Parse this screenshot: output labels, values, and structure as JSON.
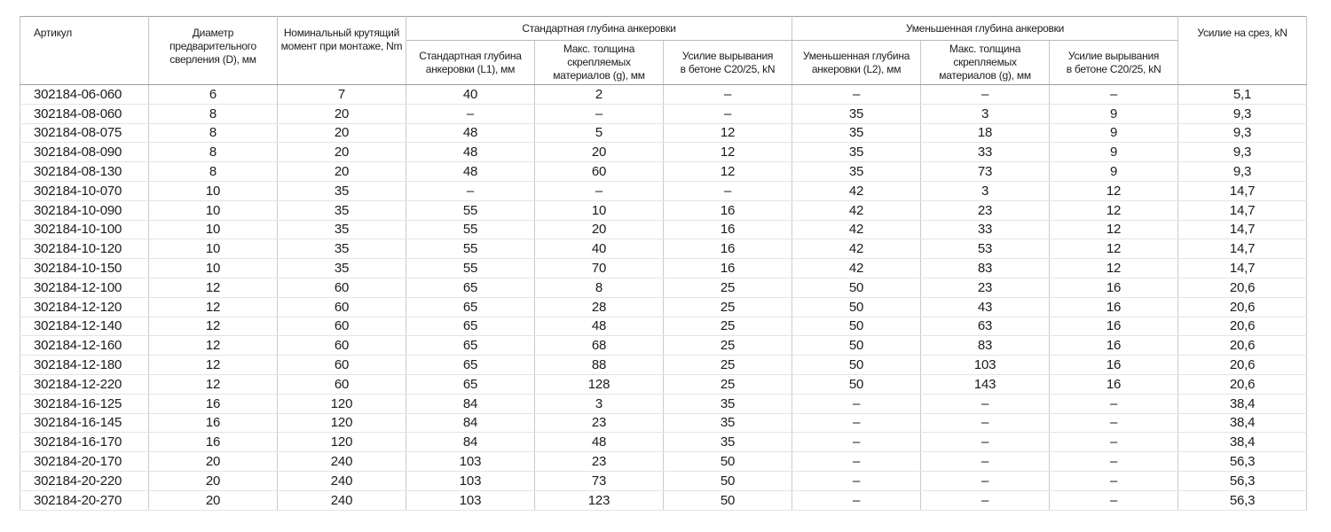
{
  "table": {
    "columns": {
      "article": "Артикул",
      "diameter": "Диаметр предварительного\nсверления (D), мм",
      "torque": "Номинальный крутящий\nмомент при монтаже, Nm",
      "group_standard": "Стандартная глубина анкеровки",
      "std_depth": "Стандартная глубина\nанкеровки (L1), мм",
      "std_thickness": "Макс. толщина скрепляемых\nматериалов (g), мм",
      "std_pullout": "Усилие вырывания\nв бетоне C20/25, kN",
      "group_reduced": "Уменьшенная глубина анкеровки",
      "red_depth": "Уменьшенная глубина\nанкеровки (L2), мм",
      "red_thickness": "Макс. толщина скрепляемых\nматериалов (g), мм",
      "red_pullout": "Усилие вырывания\nв бетоне C20/25, kN",
      "shear": "Усилие на срез, kN"
    },
    "column_keys": [
      "article",
      "diameter",
      "torque",
      "std-depth",
      "std-thickness",
      "std-pullout",
      "red-depth",
      "red-thickness",
      "red-pullout",
      "shear"
    ],
    "rows": [
      [
        "302184-06-060",
        "6",
        "7",
        "40",
        "2",
        "–",
        "–",
        "–",
        "–",
        "5,1"
      ],
      [
        "302184-08-060",
        "8",
        "20",
        "–",
        "–",
        "–",
        "35",
        "3",
        "9",
        "9,3"
      ],
      [
        "302184-08-075",
        "8",
        "20",
        "48",
        "5",
        "12",
        "35",
        "18",
        "9",
        "9,3"
      ],
      [
        "302184-08-090",
        "8",
        "20",
        "48",
        "20",
        "12",
        "35",
        "33",
        "9",
        "9,3"
      ],
      [
        "302184-08-130",
        "8",
        "20",
        "48",
        "60",
        "12",
        "35",
        "73",
        "9",
        "9,3"
      ],
      [
        "302184-10-070",
        "10",
        "35",
        "–",
        "–",
        "–",
        "42",
        "3",
        "12",
        "14,7"
      ],
      [
        "302184-10-090",
        "10",
        "35",
        "55",
        "10",
        "16",
        "42",
        "23",
        "12",
        "14,7"
      ],
      [
        "302184-10-100",
        "10",
        "35",
        "55",
        "20",
        "16",
        "42",
        "33",
        "12",
        "14,7"
      ],
      [
        "302184-10-120",
        "10",
        "35",
        "55",
        "40",
        "16",
        "42",
        "53",
        "12",
        "14,7"
      ],
      [
        "302184-10-150",
        "10",
        "35",
        "55",
        "70",
        "16",
        "42",
        "83",
        "12",
        "14,7"
      ],
      [
        "302184-12-100",
        "12",
        "60",
        "65",
        "8",
        "25",
        "50",
        "23",
        "16",
        "20,6"
      ],
      [
        "302184-12-120",
        "12",
        "60",
        "65",
        "28",
        "25",
        "50",
        "43",
        "16",
        "20,6"
      ],
      [
        "302184-12-140",
        "12",
        "60",
        "65",
        "48",
        "25",
        "50",
        "63",
        "16",
        "20,6"
      ],
      [
        "302184-12-160",
        "12",
        "60",
        "65",
        "68",
        "25",
        "50",
        "83",
        "16",
        "20,6"
      ],
      [
        "302184-12-180",
        "12",
        "60",
        "65",
        "88",
        "25",
        "50",
        "103",
        "16",
        "20,6"
      ],
      [
        "302184-12-220",
        "12",
        "60",
        "65",
        "128",
        "25",
        "50",
        "143",
        "16",
        "20,6"
      ],
      [
        "302184-16-125",
        "16",
        "120",
        "84",
        "3",
        "35",
        "–",
        "–",
        "–",
        "38,4"
      ],
      [
        "302184-16-145",
        "16",
        "120",
        "84",
        "23",
        "35",
        "–",
        "–",
        "–",
        "38,4"
      ],
      [
        "302184-16-170",
        "16",
        "120",
        "84",
        "48",
        "35",
        "–",
        "–",
        "–",
        "38,4"
      ],
      [
        "302184-20-170",
        "20",
        "240",
        "103",
        "23",
        "50",
        "–",
        "–",
        "–",
        "56,3"
      ],
      [
        "302184-20-220",
        "20",
        "240",
        "103",
        "73",
        "50",
        "–",
        "–",
        "–",
        "56,3"
      ],
      [
        "302184-20-270",
        "20",
        "240",
        "103",
        "123",
        "50",
        "–",
        "–",
        "–",
        "56,3"
      ]
    ]
  }
}
